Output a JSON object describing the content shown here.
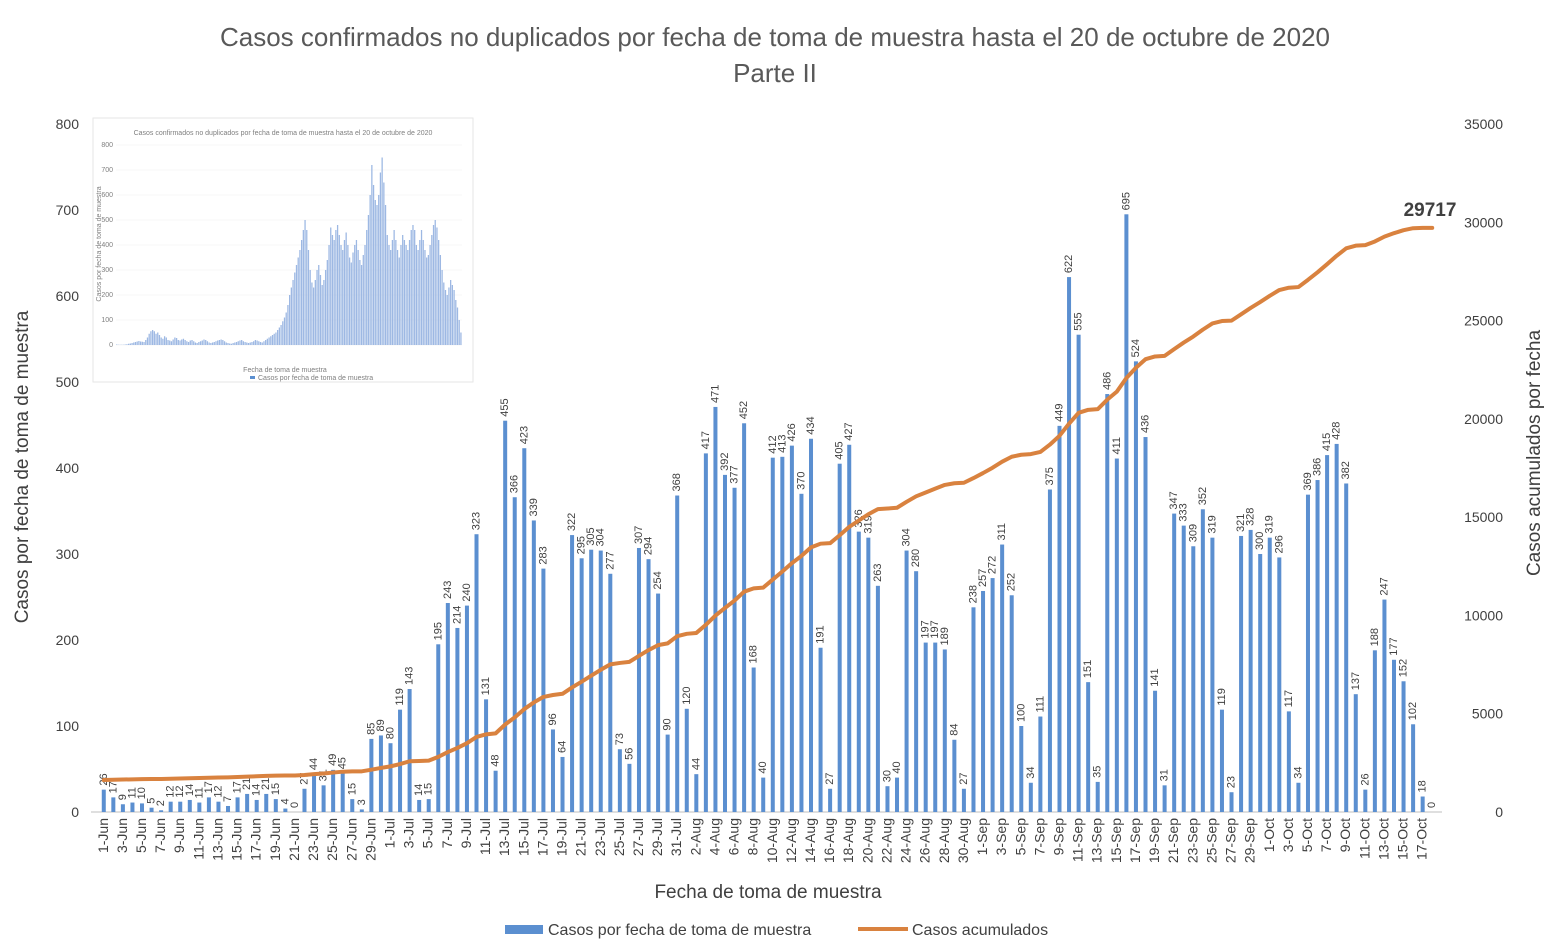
{
  "chart_data": {
    "type": "bar",
    "title": "Casos confirmados no duplicados por fecha de toma de muestra hasta el 20 de octubre de 2020",
    "subtitle": "Parte II",
    "xlabel": "Fecha de toma de muestra",
    "ylabel": "Casos por fecha de toma de muestra",
    "y2label": "Casos acumulados por fecha",
    "ylim": [
      0,
      800
    ],
    "y2lim": [
      0,
      35000
    ],
    "yticks": [
      "0",
      "100",
      "200",
      "300",
      "400",
      "500",
      "600",
      "700",
      "800"
    ],
    "y2ticks": [
      "0",
      "5000",
      "10000",
      "15000",
      "20000",
      "25000",
      "30000",
      "35000"
    ],
    "x_tick_labels": [
      "1-Jun",
      "3-Jun",
      "5-Jun",
      "7-Jun",
      "9-Jun",
      "11-Jun",
      "13-Jun",
      "15-Jun",
      "17-Jun",
      "19-Jun",
      "21-Jun",
      "23-Jun",
      "25-Jun",
      "27-Jun",
      "29-Jun",
      "1-Jul",
      "3-Jul",
      "5-Jul",
      "7-Jul",
      "9-Jul",
      "11-Jul",
      "13-Jul",
      "15-Jul",
      "17-Jul",
      "19-Jul",
      "21-Jul",
      "23-Jul",
      "25-Jul",
      "27-Jul",
      "29-Jul",
      "31-Jul",
      "2-Aug",
      "4-Aug",
      "6-Aug",
      "8-Aug",
      "10-Aug",
      "12-Aug",
      "14-Aug",
      "16-Aug",
      "18-Aug",
      "20-Aug",
      "22-Aug",
      "24-Aug",
      "26-Aug",
      "28-Aug",
      "30-Aug",
      "1-Sep",
      "3-Sep",
      "5-Sep",
      "7-Sep",
      "9-Sep",
      "11-Sep",
      "13-Sep",
      "15-Sep",
      "17-Sep",
      "19-Sep",
      "21-Sep",
      "23-Sep",
      "25-Sep",
      "27-Sep",
      "29-Sep",
      "1-Oct",
      "3-Oct",
      "5-Oct",
      "7-Oct",
      "9-Oct",
      "11-Oct",
      "13-Oct",
      "15-Oct",
      "17-Oct"
    ],
    "values": [
      26,
      17,
      9,
      11,
      10,
      5,
      2,
      12,
      12,
      14,
      11,
      17,
      12,
      7,
      17,
      21,
      14,
      21,
      15,
      4,
      0,
      27,
      44,
      31,
      49,
      45,
      15,
      3,
      85,
      89,
      80,
      119,
      143,
      14,
      15,
      195,
      243,
      214,
      240,
      323,
      131,
      48,
      455,
      366,
      423,
      339,
      283,
      96,
      64,
      322,
      295,
      305,
      304,
      277,
      73,
      56,
      307,
      294,
      254,
      90,
      368,
      120,
      44,
      417,
      471,
      392,
      377,
      452,
      168,
      40,
      412,
      413,
      426,
      370,
      434,
      191,
      27,
      405,
      427,
      326,
      319,
      263,
      30,
      40,
      304,
      280,
      197,
      197,
      189,
      84,
      27,
      238,
      257,
      272,
      311,
      252,
      100,
      34,
      111,
      375,
      449,
      622,
      555,
      151,
      35,
      486,
      411,
      695,
      524,
      436,
      141,
      31,
      347,
      333,
      309,
      352,
      319,
      119,
      23,
      321,
      328,
      300,
      319,
      296,
      117,
      34,
      369,
      386,
      415,
      428,
      382,
      137,
      26,
      188,
      247,
      177,
      152,
      102,
      18,
      0
    ],
    "series": [
      {
        "name": "Casos por fecha de toma de muestra",
        "axis": "left",
        "type": "bar",
        "color": "#5B8FD0"
      },
      {
        "name": "Casos acumulados",
        "axis": "right",
        "type": "line",
        "color": "#D9823F",
        "start": 1600,
        "final": 29717
      }
    ],
    "final_label": "29717",
    "legend": "bottom",
    "grid": false
  },
  "inset": {
    "title": "Casos confirmados no duplicados por fecha de toma de muestra hasta el 20 de octubre de 2020",
    "xlabel": "Fecha de toma de muestra",
    "ylabel": "Casos por fecha de toma de muestra",
    "legend": "Casos por fecha de toma de muestra",
    "yticks": [
      "0",
      "100",
      "200",
      "300",
      "400",
      "500",
      "600",
      "700",
      "800"
    ],
    "values": [
      2,
      1,
      1,
      1,
      1,
      2,
      3,
      5,
      6,
      8,
      10,
      12,
      14,
      16,
      14,
      13,
      12,
      20,
      30,
      45,
      55,
      60,
      55,
      45,
      50,
      40,
      30,
      25,
      35,
      30,
      20,
      18,
      15,
      22,
      30,
      28,
      20,
      18,
      22,
      25,
      20,
      15,
      12,
      18,
      20,
      15,
      10,
      8,
      12,
      15,
      18,
      22,
      20,
      15,
      10,
      8,
      10,
      12,
      15,
      18,
      20,
      22,
      20,
      15,
      10,
      8,
      6,
      5,
      8,
      10,
      12,
      15,
      18,
      20,
      15,
      12,
      10,
      8,
      10,
      12,
      15,
      20,
      18,
      15,
      12,
      10,
      15,
      20,
      25,
      30,
      35,
      40,
      45,
      50,
      60,
      70,
      80,
      95,
      110,
      130,
      160,
      200,
      230,
      260,
      290,
      320,
      350,
      380,
      420,
      460,
      500,
      460,
      380,
      300,
      250,
      230,
      260,
      300,
      320,
      280,
      240,
      260,
      300,
      340,
      400,
      470,
      440,
      420,
      460,
      480,
      440,
      400,
      380,
      420,
      450,
      400,
      350,
      330,
      370,
      400,
      420,
      380,
      340,
      320,
      360,
      400,
      460,
      520,
      600,
      720,
      640,
      580,
      560,
      600,
      690,
      750,
      650,
      560,
      440,
      400,
      380,
      420,
      460,
      420,
      380,
      350,
      400,
      440,
      420,
      400,
      380,
      420,
      460,
      480,
      460,
      400,
      380,
      420,
      460,
      420,
      380,
      350,
      360,
      400,
      440,
      480,
      500,
      470,
      420,
      360,
      300,
      250,
      220,
      200,
      230,
      260,
      240,
      220,
      180,
      150,
      100,
      50
    ]
  },
  "legend_items": [
    "Casos por fecha de toma de muestra",
    "Casos acumulados"
  ]
}
